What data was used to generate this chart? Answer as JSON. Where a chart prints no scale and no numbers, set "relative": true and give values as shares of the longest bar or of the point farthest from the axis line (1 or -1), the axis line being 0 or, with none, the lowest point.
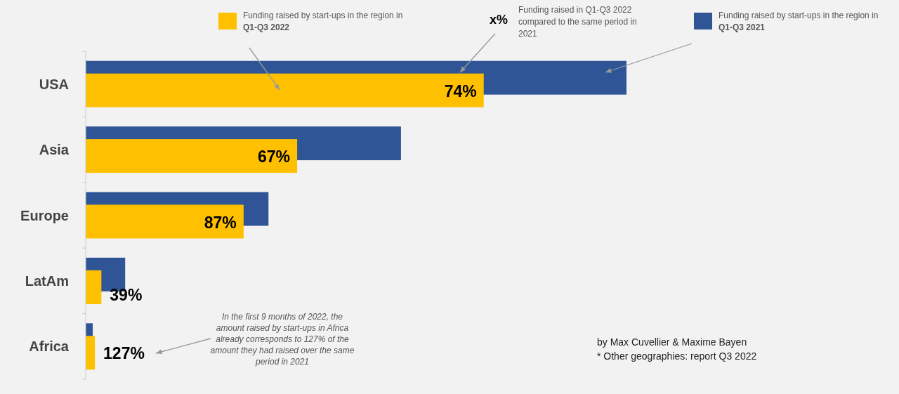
{
  "chart_data": {
    "type": "bar",
    "orientation": "horizontal",
    "relative": true,
    "legend": "top",
    "categories": [
      "USA",
      "Asia",
      "Europe",
      "LatAm",
      "Africa"
    ],
    "series": [
      {
        "name": "Funding raised by start-ups in the region in Q1-Q3 2021",
        "color": "#2f5597",
        "values": [
          1,
          0.583,
          0.338,
          0.073,
          0.013
        ]
      },
      {
        "name": "Funding raised by start-ups in the region in Q1-Q3 2022",
        "color": "#ffc000",
        "values": [
          0.736,
          0.391,
          0.292,
          0.029,
          0.017
        ]
      }
    ],
    "annotations": [
      "74%",
      "67%",
      "87%",
      "39%",
      "127%",
      "x%",
      "Funding raised in Q1-Q3 2022 compared to the same period in 2021",
      "In the first 9 months of 2022, the amount raised by start-ups in Africa already corresponds to 127% of the amount they had raised over the same period in 2021",
      "by Max Cuvellier & Maxime Bayen",
      "* Other geographies: report Q3 2022"
    ]
  }
}
